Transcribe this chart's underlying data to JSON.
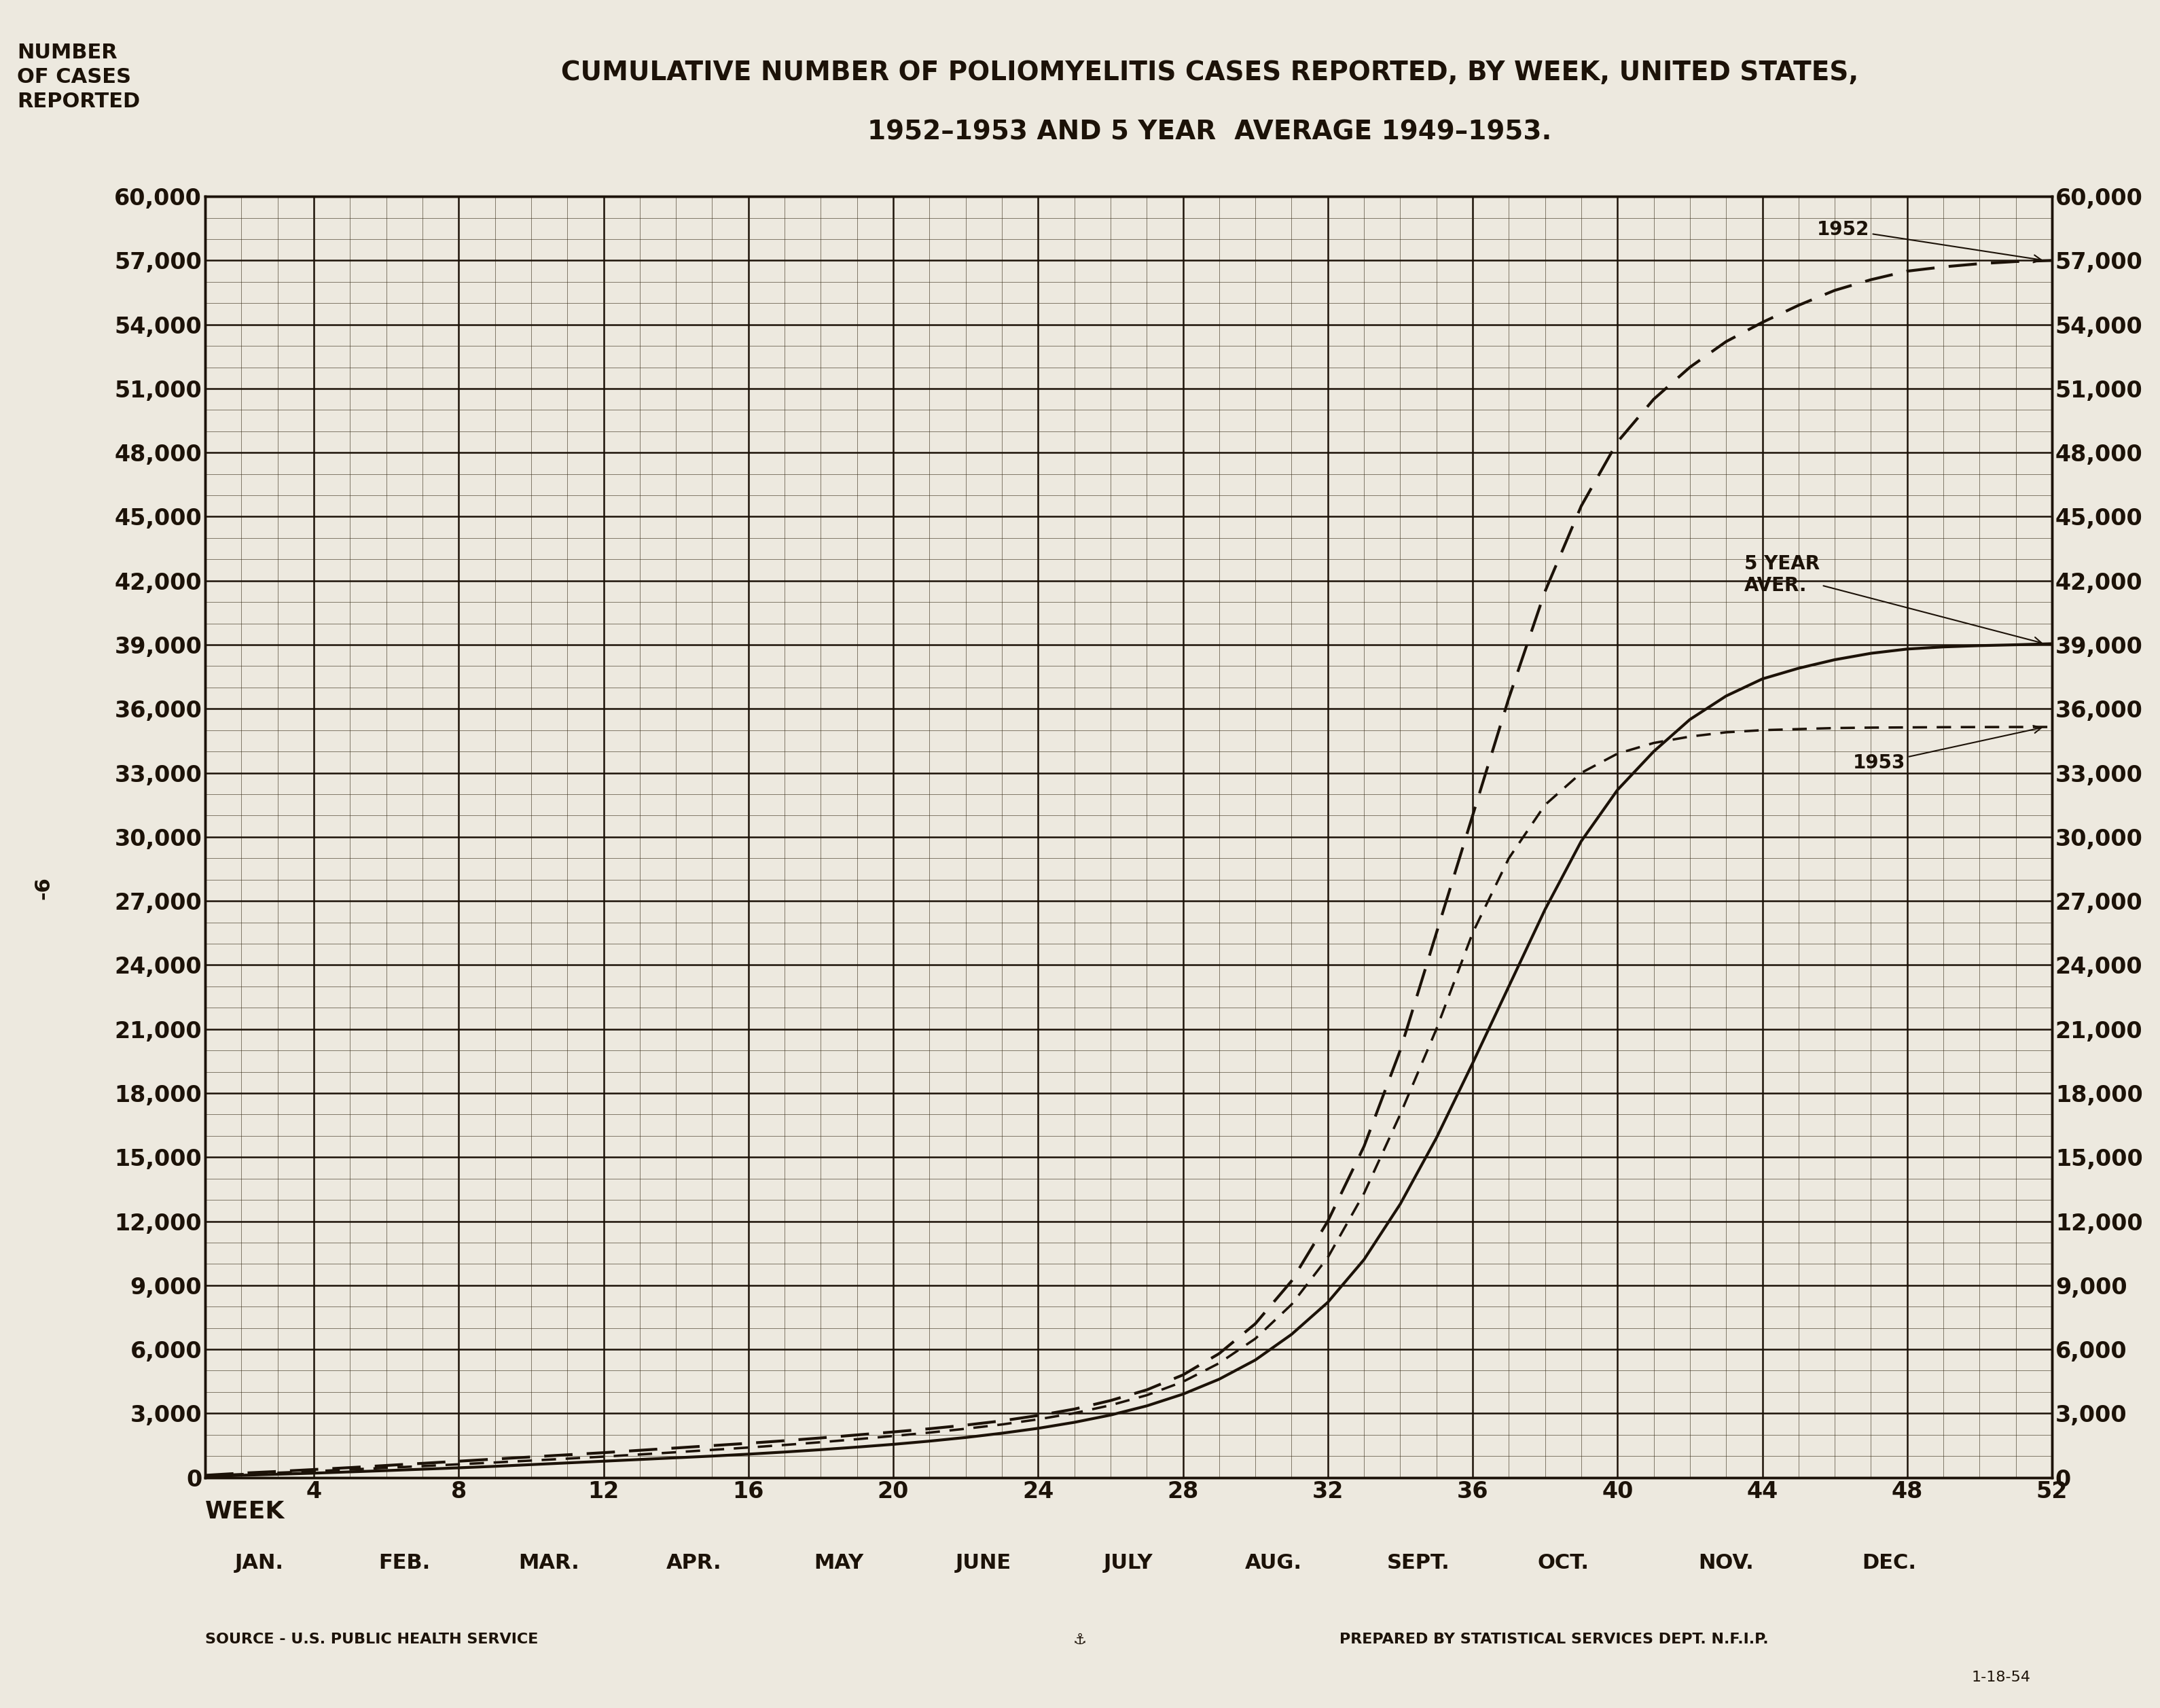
{
  "title_line1": "CUMULATIVE NUMBER OF POLIOMYELITIS CASES REPORTED, BY WEEK, UNITED STATES,",
  "title_line2": "1952–1953 AND 5 YEAR  AVERAGE 1949–1953.",
  "source_left": "SOURCE - U.S. PUBLIC HEALTH SERVICE",
  "source_right": "PREPARED BY STATISTICAL SERVICES DEPT. N.F.I.P.",
  "source_date": "1-18-54",
  "ymax": 60000,
  "ytick_interval": 3000,
  "xmin": 1,
  "xmax": 52,
  "xtick_major": [
    4,
    8,
    12,
    16,
    20,
    24,
    28,
    32,
    36,
    40,
    44,
    48,
    52
  ],
  "month_labels": [
    {
      "week": 2.5,
      "label": "JAN."
    },
    {
      "week": 6.5,
      "label": "FEB."
    },
    {
      "week": 10.5,
      "label": "MAR."
    },
    {
      "week": 14.5,
      "label": "APR."
    },
    {
      "week": 18.5,
      "label": "MAY"
    },
    {
      "week": 22.5,
      "label": "JUNE"
    },
    {
      "week": 26.5,
      "label": "JULY"
    },
    {
      "week": 30.5,
      "label": "AUG."
    },
    {
      "week": 34.5,
      "label": "SEPT."
    },
    {
      "week": 38.5,
      "label": "OCT."
    },
    {
      "week": 43.0,
      "label": "NOV."
    },
    {
      "week": 47.5,
      "label": "DEC."
    }
  ],
  "curve_1952_x": [
    1,
    2,
    3,
    4,
    5,
    6,
    7,
    8,
    9,
    10,
    11,
    12,
    13,
    14,
    15,
    16,
    17,
    18,
    19,
    20,
    21,
    22,
    23,
    24,
    25,
    26,
    27,
    28,
    29,
    30,
    31,
    32,
    33,
    34,
    35,
    36,
    37,
    38,
    39,
    40,
    41,
    42,
    43,
    44,
    45,
    46,
    47,
    48,
    49,
    50,
    51,
    52
  ],
  "curve_1952_y": [
    100,
    200,
    280,
    370,
    460,
    560,
    660,
    760,
    860,
    960,
    1060,
    1160,
    1270,
    1380,
    1490,
    1600,
    1720,
    1850,
    1990,
    2130,
    2280,
    2450,
    2650,
    2900,
    3200,
    3600,
    4100,
    4800,
    5800,
    7200,
    9200,
    12000,
    15500,
    20000,
    25500,
    31000,
    36500,
    41500,
    45500,
    48500,
    50500,
    52000,
    53200,
    54100,
    54900,
    55600,
    56100,
    56500,
    56700,
    56850,
    56950,
    57000
  ],
  "curve_5yr_x": [
    1,
    2,
    3,
    4,
    5,
    6,
    7,
    8,
    9,
    10,
    11,
    12,
    13,
    14,
    15,
    16,
    17,
    18,
    19,
    20,
    21,
    22,
    23,
    24,
    25,
    26,
    27,
    28,
    29,
    30,
    31,
    32,
    33,
    34,
    35,
    36,
    37,
    38,
    39,
    40,
    41,
    42,
    43,
    44,
    45,
    46,
    47,
    48,
    49,
    50,
    51,
    52
  ],
  "curve_5yr_y": [
    50,
    100,
    150,
    200,
    260,
    320,
    385,
    450,
    520,
    600,
    680,
    760,
    840,
    920,
    1000,
    1090,
    1190,
    1300,
    1420,
    1550,
    1700,
    1870,
    2070,
    2300,
    2580,
    2920,
    3350,
    3900,
    4600,
    5500,
    6700,
    8200,
    10200,
    12800,
    15900,
    19400,
    23000,
    26600,
    29800,
    32200,
    34000,
    35500,
    36600,
    37400,
    37900,
    38300,
    38600,
    38800,
    38900,
    38960,
    39000,
    39050
  ],
  "curve_1953_x": [
    1,
    2,
    3,
    4,
    5,
    6,
    7,
    8,
    9,
    10,
    11,
    12,
    13,
    14,
    15,
    16,
    17,
    18,
    19,
    20,
    21,
    22,
    23,
    24,
    25,
    26,
    27,
    28,
    29,
    30,
    31,
    32,
    33,
    34,
    35,
    36,
    37,
    38,
    39,
    40,
    41,
    42,
    43,
    44,
    45,
    46,
    47,
    48,
    49,
    50,
    51,
    52
  ],
  "curve_1953_y": [
    80,
    150,
    220,
    290,
    370,
    450,
    530,
    615,
    700,
    790,
    880,
    975,
    1075,
    1180,
    1290,
    1400,
    1520,
    1650,
    1790,
    1940,
    2100,
    2280,
    2480,
    2720,
    3010,
    3380,
    3850,
    4480,
    5350,
    6500,
    8100,
    10300,
    13300,
    17000,
    21000,
    25500,
    29000,
    31500,
    33000,
    33900,
    34400,
    34700,
    34900,
    35000,
    35050,
    35100,
    35120,
    35130,
    35140,
    35145,
    35148,
    35150
  ],
  "bg_color": "#ede9df",
  "grid_major_color": "#1c1208",
  "grid_minor_color": "#3a2e1a",
  "line_color": "#1c1208",
  "text_color": "#1c1208",
  "title_fontsize": 28,
  "tick_fontsize": 24,
  "label_fontsize": 22,
  "annot_fontsize": 20,
  "source_fontsize": 16
}
